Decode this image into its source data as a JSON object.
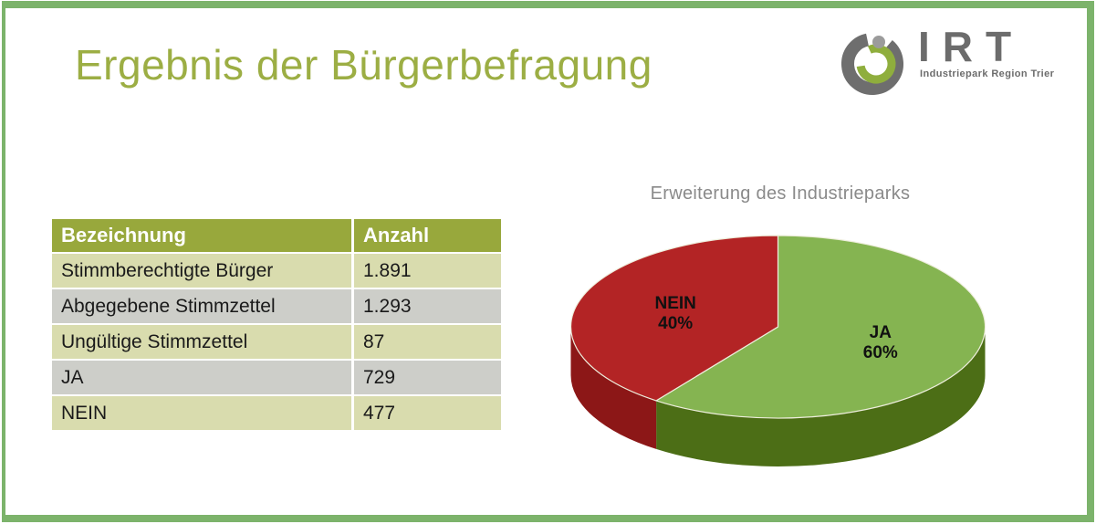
{
  "slide": {
    "title": "Ergebnis der Bürgerbefragung"
  },
  "logo": {
    "acronym": "IRT",
    "subtitle": "Industriepark Region Trier"
  },
  "table": {
    "columns": [
      "Bezeichnung",
      "Anzahl"
    ],
    "rows": [
      {
        "label": "Stimmberechtigte Bürger",
        "value": "1.891"
      },
      {
        "label": "Abgegebene Stimmzettel",
        "value": "1.293"
      },
      {
        "label": "Ungültige Stimmzettel",
        "value": "87"
      },
      {
        "label": "JA",
        "value": "729"
      },
      {
        "label": "NEIN",
        "value": "477"
      }
    ]
  },
  "chart_data": {
    "type": "pie",
    "style": "3d-pie",
    "title": "Erweiterung des Industrieparks",
    "labels": [
      "JA",
      "NEIN"
    ],
    "values": [
      60,
      40
    ],
    "value_suffix": "%",
    "start_angle_deg": 0,
    "direction": "clockwise",
    "labels_inside": true,
    "legend": "none",
    "colors": {
      "JA": "#85B451",
      "NEIN": "#B32425"
    },
    "side_colors": {
      "JA": "#4C6E16",
      "NEIN": "#8C1717"
    }
  },
  "colors": {
    "frame_green": "#7CB36B",
    "title_green": "#9CAE44",
    "table_header_bg": "#98A83C",
    "table_row_light": "#D9DCAE",
    "table_row_gray": "#CDCEC9",
    "chart_title_gray": "#8A8A8A",
    "logo_gray": "#6C6C6C"
  }
}
